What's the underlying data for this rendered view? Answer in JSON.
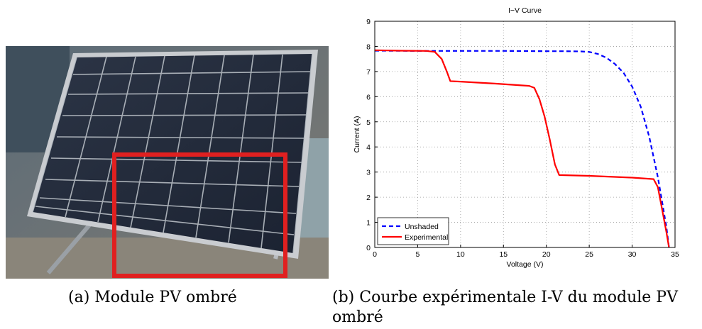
{
  "captions": {
    "a": "(a) Module PV ombré",
    "b_line1": "(b) Courbe expérimentale I-V du module PV",
    "b_line2": "ombré"
  },
  "photo": {
    "description_icon": "solar-panel-photo",
    "highlight_color": "#e02020"
  },
  "chart_data": {
    "type": "line",
    "title": "I−V Curve",
    "xlabel": "Voltage (V)",
    "ylabel": "Current (A)",
    "xlim": [
      0,
      35
    ],
    "ylim": [
      0,
      9
    ],
    "xticks": [
      0,
      5,
      10,
      15,
      20,
      25,
      30,
      35
    ],
    "yticks": [
      0,
      1,
      2,
      3,
      4,
      5,
      6,
      7,
      8,
      9
    ],
    "grid": true,
    "legend_position": "bottom-left",
    "series": [
      {
        "name": "Unshaded",
        "style": "dashed",
        "color": "#0000ff",
        "x": [
          0,
          5,
          10,
          15,
          20,
          22,
          24,
          25,
          26,
          27,
          28,
          29,
          30,
          31,
          32,
          33,
          33.5,
          34,
          34.3
        ],
        "y": [
          7.83,
          7.82,
          7.82,
          7.82,
          7.81,
          7.81,
          7.8,
          7.78,
          7.7,
          7.55,
          7.3,
          6.95,
          6.4,
          5.6,
          4.4,
          2.8,
          1.8,
          0.8,
          0
        ]
      },
      {
        "name": "Experimental",
        "style": "solid",
        "color": "#ff0000",
        "x": [
          0,
          3,
          6,
          7,
          7.8,
          8.4,
          8.8,
          10,
          14,
          18,
          18.6,
          19.2,
          19.8,
          20.4,
          21,
          21.5,
          25,
          30,
          32.5,
          33,
          33.5,
          34,
          34.3
        ],
        "y": [
          7.85,
          7.83,
          7.82,
          7.78,
          7.5,
          7.0,
          6.62,
          6.6,
          6.52,
          6.43,
          6.35,
          5.9,
          5.2,
          4.3,
          3.3,
          2.88,
          2.85,
          2.78,
          2.72,
          2.4,
          1.5,
          0.6,
          0
        ]
      }
    ]
  }
}
